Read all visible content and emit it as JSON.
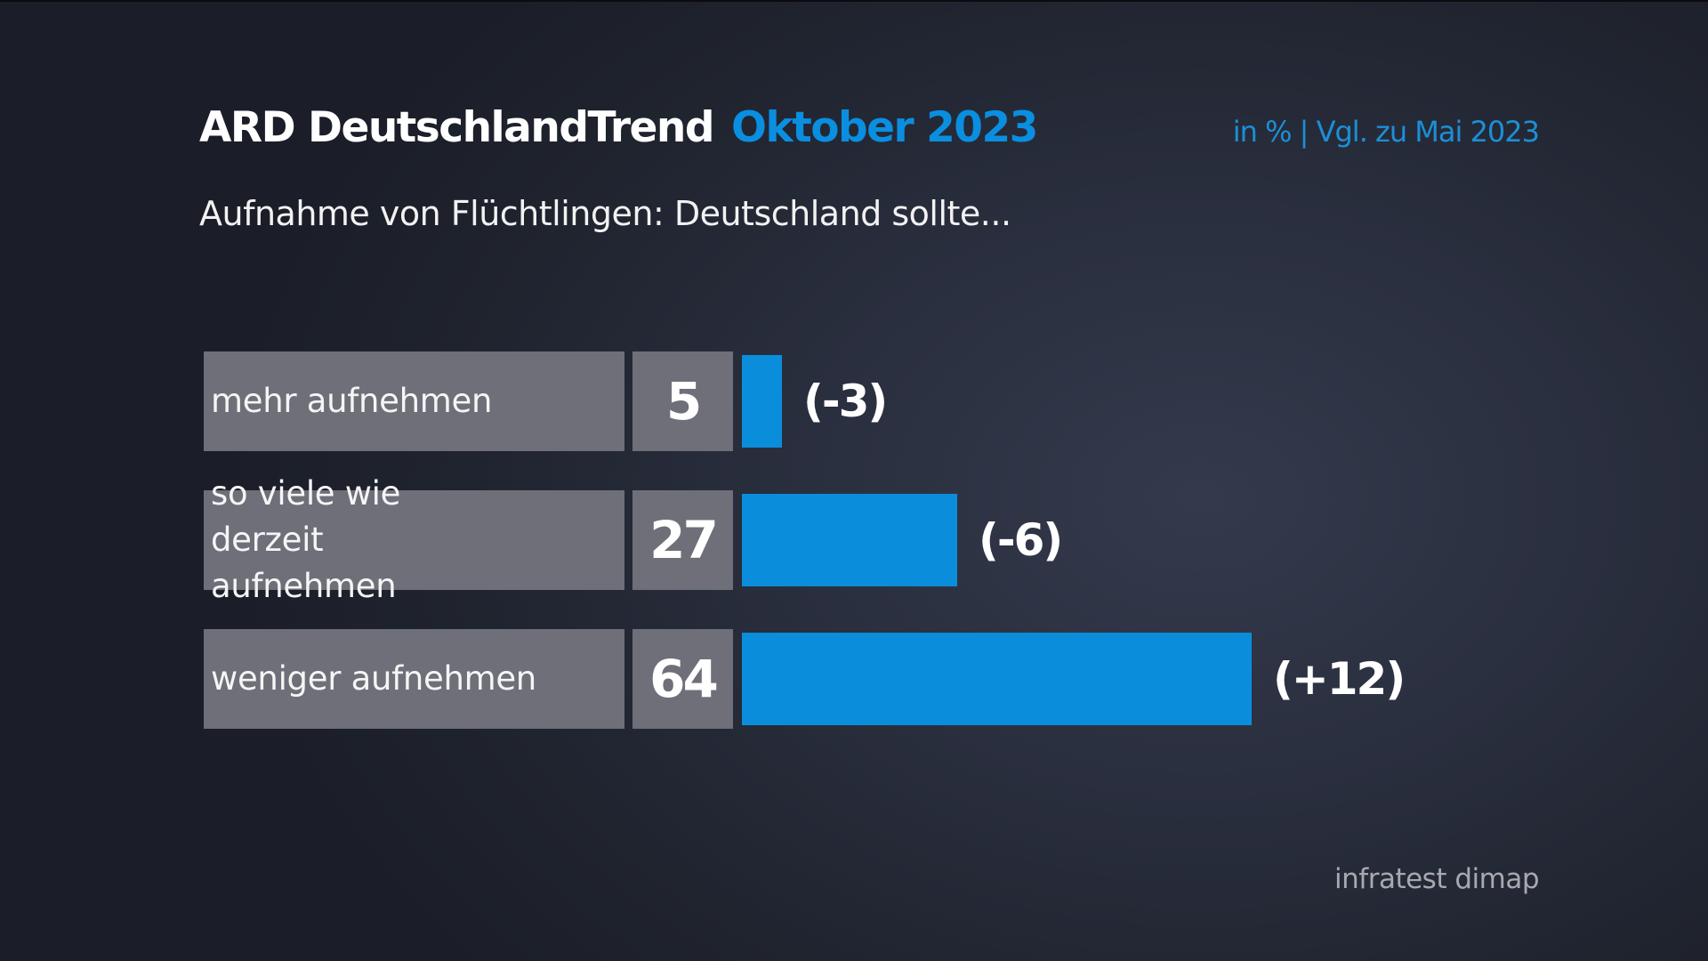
{
  "header": {
    "title": "ARD DeutschlandTrend",
    "date": "Oktober 2023",
    "meta": "in % | Vgl. zu Mai 2023",
    "subtitle": "Aufnahme von Flüchtlingen: Deutschland sollte..."
  },
  "rows": [
    {
      "label": "mehr aufnehmen",
      "value": "5",
      "delta": "(-3)"
    },
    {
      "label": "so viele wie derzeit aufnehmen",
      "value": "27",
      "delta": "(-6)"
    },
    {
      "label": "weniger aufnehmen",
      "value": "64",
      "delta": "(+12)"
    }
  ],
  "source": "infratest dimap",
  "colors": {
    "bar": "#0a8edc",
    "accent": "#0a8ee0",
    "label_box": "#6e6f79",
    "background": "#242938"
  },
  "chart_data": {
    "type": "bar",
    "orientation": "horizontal",
    "title": "ARD DeutschlandTrend Oktober 2023",
    "subtitle": "Aufnahme von Flüchtlingen: Deutschland sollte...",
    "unit_note": "in % | Vgl. zu Mai 2023",
    "categories": [
      "mehr aufnehmen",
      "so viele wie derzeit aufnehmen",
      "weniger aufnehmen"
    ],
    "values": [
      5,
      27,
      64
    ],
    "change_vs_may_2023": [
      -3,
      -6,
      12
    ],
    "annotations": [
      "(-3)",
      "(-6)",
      "(+12)"
    ],
    "xlabel": "",
    "ylabel": "",
    "grid": false,
    "source": "infratest dimap"
  }
}
